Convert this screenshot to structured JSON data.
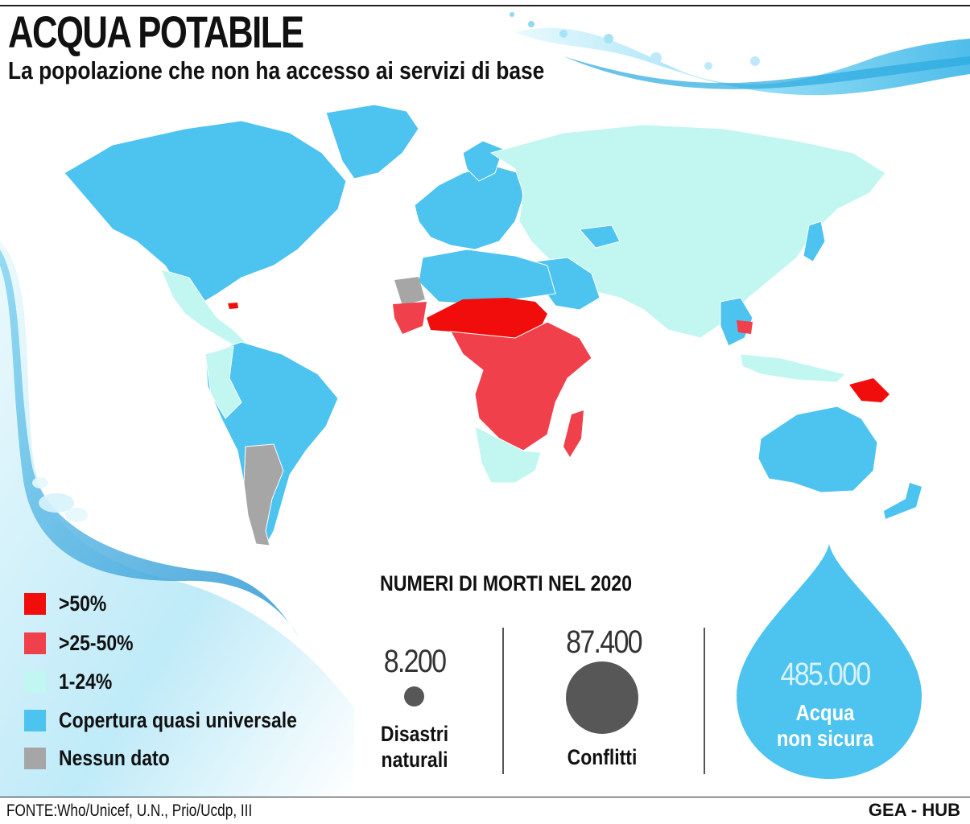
{
  "header": {
    "title": "ACQUA POTABILE",
    "subtitle": "La popolazione che non ha accesso ai servizi di base"
  },
  "colors": {
    "over_50": "#f20d0d",
    "from_25_to_50": "#f0404b",
    "from_1_to_24": "#c2f6f0",
    "universal": "#4dc3f0",
    "no_data": "#a6a6a6"
  },
  "legend": {
    "items": [
      {
        "label": ">50%",
        "color": "#f20d0d"
      },
      {
        "label": ">25-50%",
        "color": "#f0404b"
      },
      {
        "label": "1-24%",
        "color": "#c2f6f0"
      },
      {
        "label": "Copertura quasi universale",
        "color": "#4dc3f0"
      },
      {
        "label": "Nessun dato",
        "color": "#a6a6a6"
      }
    ]
  },
  "deaths": {
    "title": "NUMERI DI MORTI NEL 2020",
    "items": [
      {
        "value": "8.200",
        "label_line1": "Disastri",
        "label_line2": "naturali"
      },
      {
        "value": "87.400",
        "label_line1": "Conflitti",
        "label_line2": ""
      },
      {
        "value": "485.000",
        "label_line1": "Acqua",
        "label_line2": "non sicura"
      }
    ]
  },
  "footer": {
    "source": "FONTE:Who/Unicef, U.N., Prio/Ucdp, III",
    "brand": "GEA - HUB"
  }
}
